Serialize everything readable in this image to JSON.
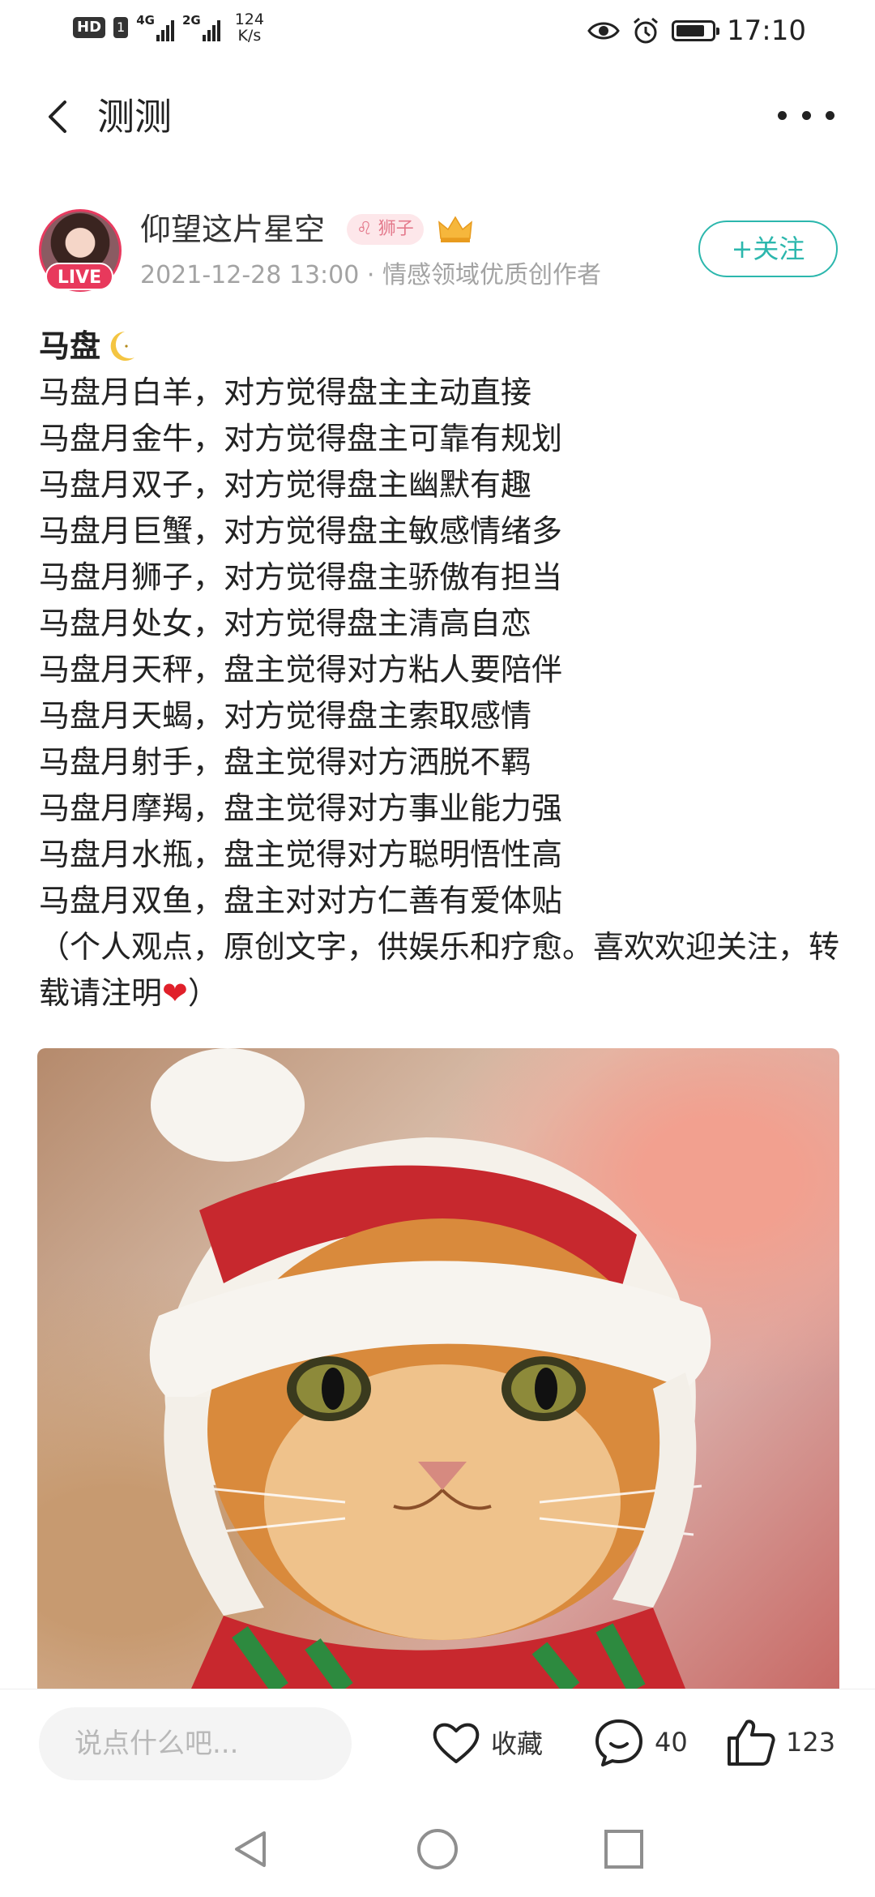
{
  "status_bar": {
    "hd_label": "HD",
    "sim_label": "1",
    "net1_label": "4G",
    "net2_label": "2G",
    "speed_value": "124",
    "speed_unit": "K/s",
    "time": "17:10",
    "battery_level": 0.8,
    "icons": [
      "eye-icon",
      "alarm-icon",
      "battery-icon"
    ]
  },
  "nav": {
    "title": "测测",
    "back_icon": "chevron-left-icon",
    "more_icon": "more-dots-icon"
  },
  "author": {
    "name": "仰望这片星空",
    "live_label": "LIVE",
    "zodiac_tag": "♌ 狮子",
    "meta": "2021-12-28 13:00 · 情感领域优质创作者",
    "follow_label": "+关注"
  },
  "post": {
    "title": "马盘",
    "lines": [
      "马盘月白羊，对方觉得盘主主动直接",
      "马盘月金牛，对方觉得盘主可靠有规划",
      "马盘月双子，对方觉得盘主幽默有趣",
      "马盘月巨蟹，对方觉得盘主敏感情绪多",
      "马盘月狮子，对方觉得盘主骄傲有担当",
      "马盘月处女，对方觉得盘主清高自恋",
      "马盘月天秤，盘主觉得对方粘人要陪伴",
      "马盘月天蝎，对方觉得盘主索取感情",
      "马盘月射手，盘主觉得对方洒脱不羁",
      "马盘月摩羯，盘主觉得对方事业能力强",
      "马盘月水瓶，盘主觉得对方聪明悟性高",
      "马盘月双鱼，盘主对对方仁善有爱体贴"
    ],
    "note_before": "（个人观点，原创文字，供娱乐和疗愈。喜欢欢迎关注，转载请注明",
    "note_heart": "❤",
    "note_after": "）"
  },
  "bottom_bar": {
    "comment_placeholder": "说点什么吧...",
    "favorite_label": "收藏",
    "comment_count": "40",
    "like_count": "123"
  },
  "colors": {
    "accent": "#2cb7ad",
    "live": "#e8395c",
    "meta_text": "#a3a3a3"
  }
}
